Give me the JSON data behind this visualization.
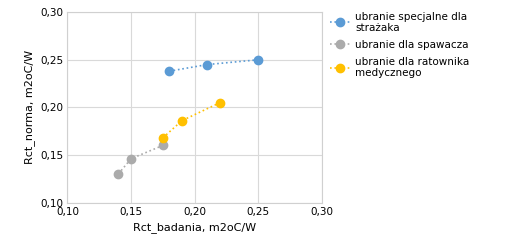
{
  "series": [
    {
      "label": "ubranie specjalne dla\nstrażaka",
      "x": [
        0.18,
        0.21,
        0.25
      ],
      "y": [
        0.238,
        0.245,
        0.25
      ],
      "color": "#5B9BD5",
      "zorder": 3
    },
    {
      "label": "ubranie dla spawacza",
      "x": [
        0.14,
        0.15,
        0.175
      ],
      "y": [
        0.13,
        0.146,
        0.16
      ],
      "color": "#ABABAB",
      "zorder": 2
    },
    {
      "label": "ubranie dla ratownika\nmedycznego",
      "x": [
        0.175,
        0.19,
        0.22
      ],
      "y": [
        0.168,
        0.186,
        0.205
      ],
      "color": "#FFC000",
      "zorder": 2
    }
  ],
  "xlabel": "Rct_badania, m2oC/W",
  "ylabel": "Rct_norma, m2oC/W",
  "xlim": [
    0.1,
    0.3
  ],
  "ylim": [
    0.1,
    0.3
  ],
  "xticks": [
    0.1,
    0.15,
    0.2,
    0.25,
    0.3
  ],
  "yticks": [
    0.1,
    0.15,
    0.2,
    0.25,
    0.3
  ],
  "grid_color": "#D9D9D9",
  "background_color": "#FFFFFF",
  "marker_size": 6,
  "line_width": 1.2,
  "legend_fontsize": 7.5,
  "tick_labelsize": 7.5,
  "axis_labelsize": 8
}
